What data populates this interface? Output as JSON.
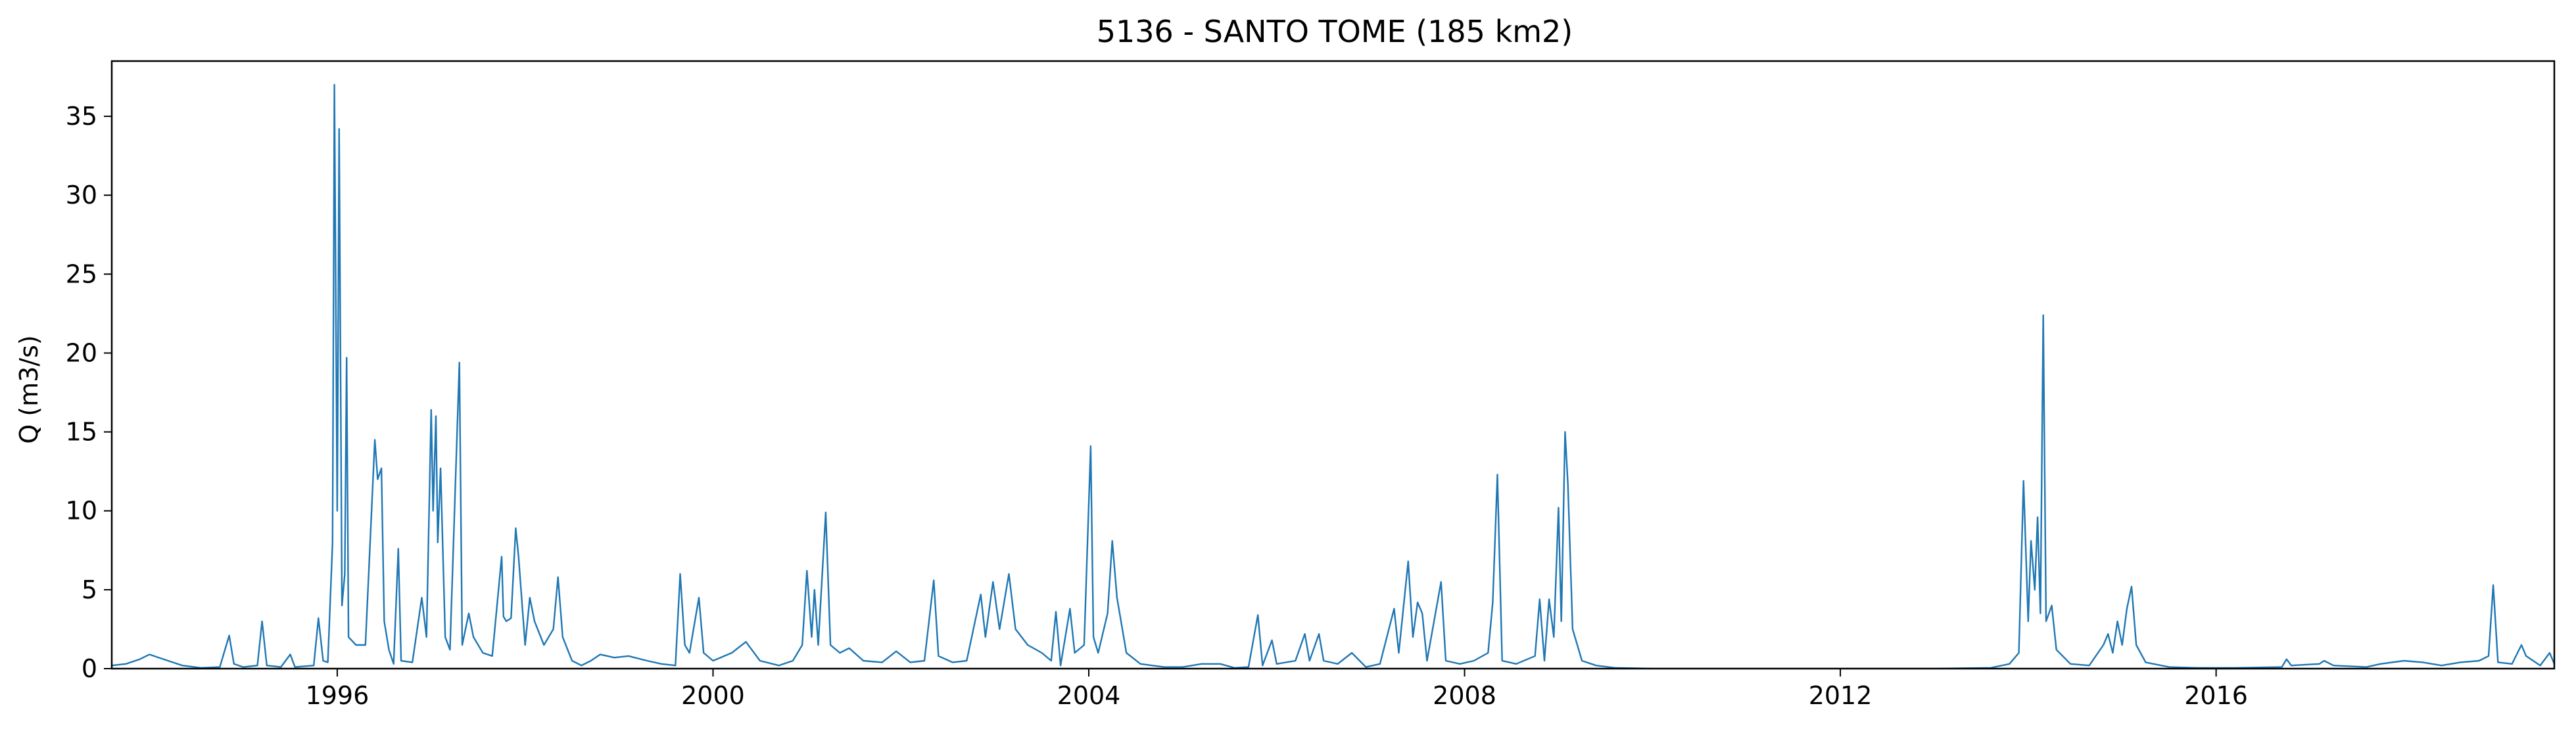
{
  "chart_data": {
    "type": "line",
    "title": "5136 - SANTO TOME (185 km2)",
    "xlabel": "",
    "ylabel": "Q (m3/s)",
    "x_unit": "year",
    "xlim": [
      1993.6,
      2019.6
    ],
    "ylim": [
      0,
      38.5
    ],
    "x_ticks": [
      1996,
      2000,
      2004,
      2008,
      2012,
      2016
    ],
    "x_tick_labels": [
      "1996",
      "2000",
      "2004",
      "2008",
      "2012",
      "2016"
    ],
    "y_ticks": [
      0,
      5,
      10,
      15,
      20,
      25,
      30,
      35
    ],
    "y_tick_labels": [
      "0",
      "5",
      "10",
      "15",
      "20",
      "25",
      "30",
      "35"
    ],
    "grid": false,
    "line_color": "#1f77b4",
    "series": [
      {
        "points": [
          [
            1993.6,
            0.2
          ],
          [
            1993.75,
            0.3
          ],
          [
            1993.9,
            0.6
          ],
          [
            1994.0,
            0.9
          ],
          [
            1994.1,
            0.7
          ],
          [
            1994.2,
            0.5
          ],
          [
            1994.35,
            0.2
          ],
          [
            1994.55,
            0.05
          ],
          [
            1994.75,
            0.1
          ],
          [
            1994.85,
            2.1
          ],
          [
            1994.9,
            0.3
          ],
          [
            1995.0,
            0.1
          ],
          [
            1995.15,
            0.2
          ],
          [
            1995.2,
            3.0
          ],
          [
            1995.25,
            0.2
          ],
          [
            1995.4,
            0.1
          ],
          [
            1995.5,
            0.9
          ],
          [
            1995.55,
            0.1
          ],
          [
            1995.75,
            0.2
          ],
          [
            1995.8,
            3.2
          ],
          [
            1995.85,
            0.5
          ],
          [
            1995.9,
            0.4
          ],
          [
            1995.95,
            8.0
          ],
          [
            1995.97,
            37.0
          ],
          [
            1996.0,
            10.0
          ],
          [
            1996.02,
            34.2
          ],
          [
            1996.05,
            4.0
          ],
          [
            1996.08,
            6.0
          ],
          [
            1996.1,
            19.7
          ],
          [
            1996.12,
            2.0
          ],
          [
            1996.2,
            1.5
          ],
          [
            1996.3,
            1.5
          ],
          [
            1996.4,
            14.5
          ],
          [
            1996.43,
            12.0
          ],
          [
            1996.47,
            12.7
          ],
          [
            1996.5,
            3.0
          ],
          [
            1996.55,
            1.2
          ],
          [
            1996.6,
            0.3
          ],
          [
            1996.65,
            7.6
          ],
          [
            1996.68,
            0.5
          ],
          [
            1996.8,
            0.4
          ],
          [
            1996.9,
            4.5
          ],
          [
            1996.95,
            2.0
          ],
          [
            1997.0,
            16.4
          ],
          [
            1997.02,
            10.0
          ],
          [
            1997.05,
            16.0
          ],
          [
            1997.07,
            8.0
          ],
          [
            1997.1,
            12.7
          ],
          [
            1997.15,
            2.0
          ],
          [
            1997.2,
            1.2
          ],
          [
            1997.3,
            19.4
          ],
          [
            1997.33,
            1.5
          ],
          [
            1997.4,
            3.5
          ],
          [
            1997.45,
            2.0
          ],
          [
            1997.55,
            1.0
          ],
          [
            1997.65,
            0.8
          ],
          [
            1997.75,
            7.1
          ],
          [
            1997.77,
            3.3
          ],
          [
            1997.8,
            3.0
          ],
          [
            1997.85,
            3.2
          ],
          [
            1997.9,
            8.9
          ],
          [
            1997.93,
            7.1
          ],
          [
            1998.0,
            1.5
          ],
          [
            1998.05,
            4.5
          ],
          [
            1998.1,
            3.0
          ],
          [
            1998.2,
            1.5
          ],
          [
            1998.3,
            2.5
          ],
          [
            1998.35,
            5.8
          ],
          [
            1998.4,
            2.0
          ],
          [
            1998.5,
            0.5
          ],
          [
            1998.6,
            0.2
          ],
          [
            1998.7,
            0.5
          ],
          [
            1998.8,
            0.9
          ],
          [
            1998.95,
            0.7
          ],
          [
            1999.1,
            0.8
          ],
          [
            1999.3,
            0.5
          ],
          [
            1999.45,
            0.3
          ],
          [
            1999.6,
            0.2
          ],
          [
            1999.65,
            6.0
          ],
          [
            1999.7,
            1.5
          ],
          [
            1999.75,
            1.0
          ],
          [
            1999.85,
            4.5
          ],
          [
            1999.9,
            1.0
          ],
          [
            2000.0,
            0.5
          ],
          [
            2000.2,
            1.0
          ],
          [
            2000.35,
            1.7
          ],
          [
            2000.5,
            0.5
          ],
          [
            2000.7,
            0.2
          ],
          [
            2000.85,
            0.5
          ],
          [
            2000.95,
            1.5
          ],
          [
            2001.0,
            6.2
          ],
          [
            2001.05,
            2.0
          ],
          [
            2001.08,
            5.0
          ],
          [
            2001.12,
            1.5
          ],
          [
            2001.2,
            9.9
          ],
          [
            2001.25,
            1.5
          ],
          [
            2001.35,
            1.0
          ],
          [
            2001.45,
            1.3
          ],
          [
            2001.6,
            0.5
          ],
          [
            2001.8,
            0.4
          ],
          [
            2001.95,
            1.1
          ],
          [
            2002.1,
            0.4
          ],
          [
            2002.25,
            0.5
          ],
          [
            2002.35,
            5.6
          ],
          [
            2002.4,
            0.8
          ],
          [
            2002.55,
            0.4
          ],
          [
            2002.7,
            0.5
          ],
          [
            2002.85,
            4.7
          ],
          [
            2002.9,
            2.0
          ],
          [
            2002.98,
            5.5
          ],
          [
            2003.05,
            2.5
          ],
          [
            2003.15,
            6.0
          ],
          [
            2003.22,
            2.5
          ],
          [
            2003.35,
            1.5
          ],
          [
            2003.5,
            1.0
          ],
          [
            2003.6,
            0.5
          ],
          [
            2003.65,
            3.6
          ],
          [
            2003.7,
            0.2
          ],
          [
            2003.8,
            3.8
          ],
          [
            2003.85,
            1.0
          ],
          [
            2003.95,
            1.5
          ],
          [
            2004.02,
            14.1
          ],
          [
            2004.05,
            2.0
          ],
          [
            2004.1,
            1.0
          ],
          [
            2004.2,
            3.5
          ],
          [
            2004.25,
            8.1
          ],
          [
            2004.3,
            4.5
          ],
          [
            2004.4,
            1.0
          ],
          [
            2004.55,
            0.3
          ],
          [
            2004.8,
            0.1
          ],
          [
            2005.0,
            0.1
          ],
          [
            2005.2,
            0.3
          ],
          [
            2005.4,
            0.3
          ],
          [
            2005.55,
            0.05
          ],
          [
            2005.7,
            0.1
          ],
          [
            2005.8,
            3.4
          ],
          [
            2005.85,
            0.2
          ],
          [
            2005.95,
            1.8
          ],
          [
            2006.0,
            0.3
          ],
          [
            2006.2,
            0.5
          ],
          [
            2006.3,
            2.2
          ],
          [
            2006.35,
            0.5
          ],
          [
            2006.45,
            2.2
          ],
          [
            2006.5,
            0.5
          ],
          [
            2006.65,
            0.3
          ],
          [
            2006.8,
            1.0
          ],
          [
            2006.95,
            0.1
          ],
          [
            2007.1,
            0.3
          ],
          [
            2007.25,
            3.8
          ],
          [
            2007.3,
            1.0
          ],
          [
            2007.4,
            6.8
          ],
          [
            2007.45,
            2.0
          ],
          [
            2007.5,
            4.2
          ],
          [
            2007.55,
            3.5
          ],
          [
            2007.6,
            0.5
          ],
          [
            2007.75,
            5.5
          ],
          [
            2007.8,
            0.5
          ],
          [
            2007.95,
            0.3
          ],
          [
            2008.1,
            0.5
          ],
          [
            2008.25,
            1.0
          ],
          [
            2008.3,
            4.2
          ],
          [
            2008.35,
            12.3
          ],
          [
            2008.4,
            0.5
          ],
          [
            2008.55,
            0.3
          ],
          [
            2008.75,
            0.8
          ],
          [
            2008.8,
            4.4
          ],
          [
            2008.85,
            0.5
          ],
          [
            2008.9,
            4.4
          ],
          [
            2008.95,
            2.0
          ],
          [
            2009.0,
            10.2
          ],
          [
            2009.03,
            3.0
          ],
          [
            2009.07,
            15.0
          ],
          [
            2009.1,
            11.7
          ],
          [
            2009.15,
            2.5
          ],
          [
            2009.25,
            0.5
          ],
          [
            2009.4,
            0.2
          ],
          [
            2009.6,
            0.05
          ],
          [
            2010.0,
            0.0
          ],
          [
            2011.0,
            0.0
          ],
          [
            2012.0,
            0.0
          ],
          [
            2013.0,
            0.0
          ],
          [
            2013.6,
            0.05
          ],
          [
            2013.8,
            0.3
          ],
          [
            2013.9,
            1.0
          ],
          [
            2013.95,
            11.9
          ],
          [
            2014.0,
            3.0
          ],
          [
            2014.03,
            8.1
          ],
          [
            2014.07,
            5.0
          ],
          [
            2014.1,
            9.6
          ],
          [
            2014.13,
            3.5
          ],
          [
            2014.16,
            22.4
          ],
          [
            2014.19,
            3.0
          ],
          [
            2014.25,
            4.0
          ],
          [
            2014.3,
            1.2
          ],
          [
            2014.45,
            0.3
          ],
          [
            2014.65,
            0.2
          ],
          [
            2014.8,
            1.5
          ],
          [
            2014.85,
            2.2
          ],
          [
            2014.9,
            1.0
          ],
          [
            2014.95,
            3.0
          ],
          [
            2015.0,
            1.5
          ],
          [
            2015.05,
            3.8
          ],
          [
            2015.1,
            5.2
          ],
          [
            2015.15,
            1.5
          ],
          [
            2015.25,
            0.4
          ],
          [
            2015.5,
            0.1
          ],
          [
            2015.8,
            0.05
          ],
          [
            2016.2,
            0.05
          ],
          [
            2016.7,
            0.1
          ],
          [
            2016.75,
            0.6
          ],
          [
            2016.8,
            0.2
          ],
          [
            2017.1,
            0.3
          ],
          [
            2017.15,
            0.5
          ],
          [
            2017.25,
            0.2
          ],
          [
            2017.6,
            0.1
          ],
          [
            2017.75,
            0.3
          ],
          [
            2018.0,
            0.5
          ],
          [
            2018.2,
            0.4
          ],
          [
            2018.4,
            0.2
          ],
          [
            2018.6,
            0.4
          ],
          [
            2018.8,
            0.5
          ],
          [
            2018.9,
            0.8
          ],
          [
            2018.95,
            5.3
          ],
          [
            2019.0,
            0.4
          ],
          [
            2019.15,
            0.3
          ],
          [
            2019.25,
            1.5
          ],
          [
            2019.3,
            0.8
          ],
          [
            2019.45,
            0.2
          ],
          [
            2019.55,
            1.0
          ],
          [
            2019.6,
            0.3
          ]
        ]
      }
    ]
  }
}
